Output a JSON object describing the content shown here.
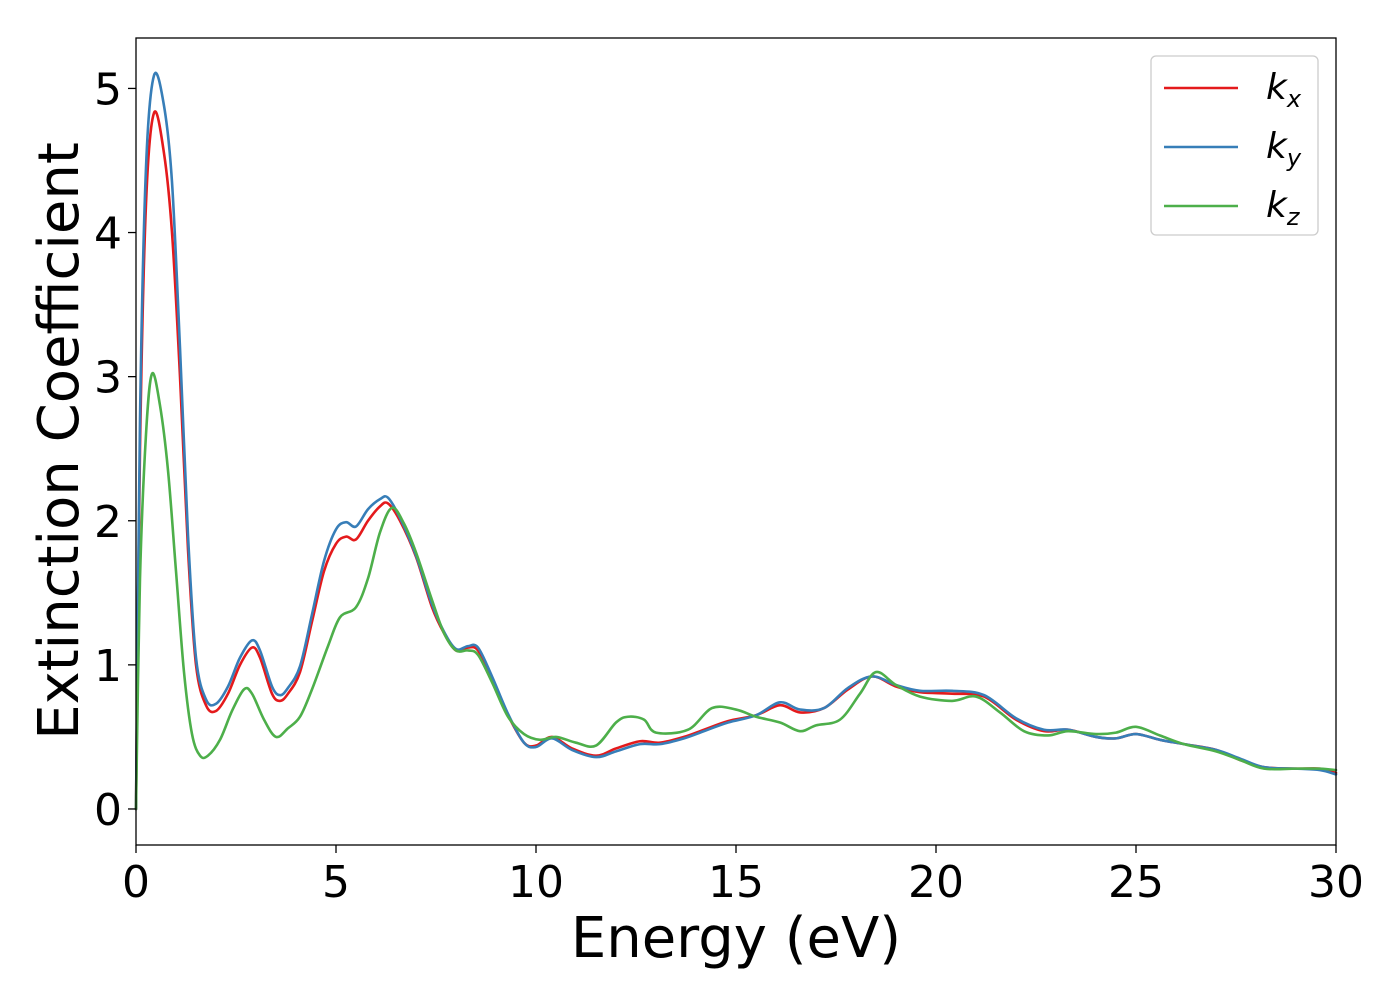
{
  "chart_data": {
    "type": "line",
    "title": "",
    "xlabel": "Energy (eV)",
    "ylabel": "Extinction Coefficient",
    "xlim": [
      0,
      30
    ],
    "ylim": [
      -0.25,
      5.35
    ],
    "xticks": [
      0,
      5,
      10,
      15,
      20,
      25,
      30
    ],
    "xtick_labels": [
      "0",
      "5",
      "10",
      "15",
      "20",
      "25",
      "30"
    ],
    "yticks": [
      0,
      1,
      2,
      3,
      4,
      5
    ],
    "ytick_labels": [
      "0",
      "1",
      "2",
      "3",
      "4",
      "5"
    ],
    "grid": false,
    "legend_position": "top-right",
    "series": [
      {
        "name": "k",
        "subscript": "x",
        "color": "#e41a1c",
        "points": [
          [
            0,
            0
          ],
          [
            0.1,
            2.5
          ],
          [
            0.25,
            4.2
          ],
          [
            0.45,
            4.83
          ],
          [
            0.7,
            4.55
          ],
          [
            0.9,
            4.0
          ],
          [
            1.1,
            3.0
          ],
          [
            1.3,
            1.8
          ],
          [
            1.5,
            1.0
          ],
          [
            1.75,
            0.72
          ],
          [
            2.0,
            0.68
          ],
          [
            2.3,
            0.8
          ],
          [
            2.6,
            1.0
          ],
          [
            2.9,
            1.12
          ],
          [
            3.1,
            1.05
          ],
          [
            3.4,
            0.8
          ],
          [
            3.6,
            0.75
          ],
          [
            3.8,
            0.8
          ],
          [
            4.1,
            0.95
          ],
          [
            4.4,
            1.3
          ],
          [
            4.7,
            1.65
          ],
          [
            5.0,
            1.84
          ],
          [
            5.25,
            1.89
          ],
          [
            5.5,
            1.87
          ],
          [
            5.8,
            2.0
          ],
          [
            6.1,
            2.1
          ],
          [
            6.3,
            2.12
          ],
          [
            6.6,
            2.0
          ],
          [
            7.0,
            1.75
          ],
          [
            7.4,
            1.4
          ],
          [
            7.7,
            1.22
          ],
          [
            8.0,
            1.1
          ],
          [
            8.3,
            1.12
          ],
          [
            8.55,
            1.1
          ],
          [
            8.9,
            0.9
          ],
          [
            9.3,
            0.65
          ],
          [
            9.7,
            0.46
          ],
          [
            10.0,
            0.44
          ],
          [
            10.4,
            0.5
          ],
          [
            10.9,
            0.42
          ],
          [
            11.5,
            0.37
          ],
          [
            12.0,
            0.42
          ],
          [
            12.6,
            0.47
          ],
          [
            13.1,
            0.46
          ],
          [
            13.7,
            0.5
          ],
          [
            14.2,
            0.55
          ],
          [
            14.8,
            0.61
          ],
          [
            15.5,
            0.65
          ],
          [
            16.1,
            0.72
          ],
          [
            16.6,
            0.67
          ],
          [
            17.2,
            0.7
          ],
          [
            17.8,
            0.83
          ],
          [
            18.4,
            0.92
          ],
          [
            19.0,
            0.85
          ],
          [
            19.6,
            0.81
          ],
          [
            20.4,
            0.8
          ],
          [
            21.2,
            0.78
          ],
          [
            22.0,
            0.62
          ],
          [
            22.7,
            0.54
          ],
          [
            23.3,
            0.55
          ],
          [
            24.0,
            0.5
          ],
          [
            24.5,
            0.49
          ],
          [
            25.0,
            0.52
          ],
          [
            25.6,
            0.48
          ],
          [
            26.2,
            0.45
          ],
          [
            27.0,
            0.41
          ],
          [
            27.6,
            0.34
          ],
          [
            28.2,
            0.29
          ],
          [
            29.0,
            0.28
          ],
          [
            29.6,
            0.28
          ],
          [
            30.0,
            0.25
          ]
        ]
      },
      {
        "name": "k",
        "subscript": "y",
        "color": "#377eb8",
        "points": [
          [
            0,
            0
          ],
          [
            0.1,
            2.7
          ],
          [
            0.25,
            4.45
          ],
          [
            0.45,
            5.09
          ],
          [
            0.7,
            4.88
          ],
          [
            0.9,
            4.35
          ],
          [
            1.1,
            3.2
          ],
          [
            1.3,
            1.9
          ],
          [
            1.5,
            1.05
          ],
          [
            1.75,
            0.76
          ],
          [
            2.0,
            0.73
          ],
          [
            2.3,
            0.85
          ],
          [
            2.6,
            1.05
          ],
          [
            2.9,
            1.17
          ],
          [
            3.1,
            1.1
          ],
          [
            3.4,
            0.85
          ],
          [
            3.6,
            0.79
          ],
          [
            3.8,
            0.84
          ],
          [
            4.1,
            0.99
          ],
          [
            4.4,
            1.35
          ],
          [
            4.7,
            1.72
          ],
          [
            5.0,
            1.94
          ],
          [
            5.25,
            1.99
          ],
          [
            5.5,
            1.96
          ],
          [
            5.8,
            2.08
          ],
          [
            6.1,
            2.15
          ],
          [
            6.3,
            2.16
          ],
          [
            6.6,
            2.02
          ],
          [
            7.0,
            1.76
          ],
          [
            7.4,
            1.42
          ],
          [
            7.7,
            1.23
          ],
          [
            8.0,
            1.11
          ],
          [
            8.3,
            1.13
          ],
          [
            8.55,
            1.12
          ],
          [
            8.9,
            0.92
          ],
          [
            9.3,
            0.66
          ],
          [
            9.7,
            0.46
          ],
          [
            10.0,
            0.43
          ],
          [
            10.4,
            0.49
          ],
          [
            10.9,
            0.41
          ],
          [
            11.5,
            0.36
          ],
          [
            12.0,
            0.4
          ],
          [
            12.6,
            0.45
          ],
          [
            13.1,
            0.45
          ],
          [
            13.7,
            0.49
          ],
          [
            14.2,
            0.54
          ],
          [
            14.8,
            0.6
          ],
          [
            15.5,
            0.65
          ],
          [
            16.1,
            0.74
          ],
          [
            16.6,
            0.69
          ],
          [
            17.2,
            0.7
          ],
          [
            17.8,
            0.84
          ],
          [
            18.4,
            0.92
          ],
          [
            19.0,
            0.86
          ],
          [
            19.6,
            0.82
          ],
          [
            20.4,
            0.82
          ],
          [
            21.2,
            0.79
          ],
          [
            22.0,
            0.63
          ],
          [
            22.7,
            0.55
          ],
          [
            23.3,
            0.55
          ],
          [
            24.0,
            0.5
          ],
          [
            24.5,
            0.49
          ],
          [
            25.0,
            0.52
          ],
          [
            25.6,
            0.48
          ],
          [
            26.2,
            0.45
          ],
          [
            27.0,
            0.41
          ],
          [
            27.6,
            0.35
          ],
          [
            28.2,
            0.29
          ],
          [
            29.0,
            0.28
          ],
          [
            29.6,
            0.27
          ],
          [
            30.0,
            0.24
          ]
        ]
      },
      {
        "name": "k",
        "subscript": "z",
        "color": "#4daf4a",
        "points": [
          [
            0,
            0
          ],
          [
            0.1,
            1.6
          ],
          [
            0.25,
            2.6
          ],
          [
            0.4,
            3.02
          ],
          [
            0.6,
            2.8
          ],
          [
            0.8,
            2.35
          ],
          [
            1.0,
            1.65
          ],
          [
            1.2,
            0.95
          ],
          [
            1.4,
            0.52
          ],
          [
            1.6,
            0.37
          ],
          [
            1.8,
            0.37
          ],
          [
            2.1,
            0.48
          ],
          [
            2.4,
            0.68
          ],
          [
            2.7,
            0.83
          ],
          [
            2.9,
            0.8
          ],
          [
            3.2,
            0.62
          ],
          [
            3.5,
            0.5
          ],
          [
            3.8,
            0.56
          ],
          [
            4.1,
            0.64
          ],
          [
            4.4,
            0.83
          ],
          [
            4.8,
            1.13
          ],
          [
            5.1,
            1.33
          ],
          [
            5.5,
            1.4
          ],
          [
            5.8,
            1.6
          ],
          [
            6.1,
            1.92
          ],
          [
            6.4,
            2.09
          ],
          [
            6.7,
            1.98
          ],
          [
            7.0,
            1.78
          ],
          [
            7.4,
            1.45
          ],
          [
            7.7,
            1.22
          ],
          [
            8.0,
            1.1
          ],
          [
            8.3,
            1.1
          ],
          [
            8.55,
            1.07
          ],
          [
            8.9,
            0.88
          ],
          [
            9.3,
            0.64
          ],
          [
            9.7,
            0.52
          ],
          [
            10.1,
            0.48
          ],
          [
            10.5,
            0.5
          ],
          [
            11.0,
            0.46
          ],
          [
            11.5,
            0.44
          ],
          [
            12.0,
            0.6
          ],
          [
            12.3,
            0.64
          ],
          [
            12.7,
            0.62
          ],
          [
            13.0,
            0.53
          ],
          [
            13.8,
            0.55
          ],
          [
            14.4,
            0.7
          ],
          [
            15.0,
            0.69
          ],
          [
            15.5,
            0.64
          ],
          [
            16.1,
            0.6
          ],
          [
            16.6,
            0.54
          ],
          [
            17.0,
            0.58
          ],
          [
            17.6,
            0.62
          ],
          [
            18.1,
            0.8
          ],
          [
            18.5,
            0.95
          ],
          [
            19.0,
            0.86
          ],
          [
            19.6,
            0.78
          ],
          [
            20.4,
            0.75
          ],
          [
            21.0,
            0.78
          ],
          [
            21.6,
            0.67
          ],
          [
            22.2,
            0.54
          ],
          [
            22.8,
            0.51
          ],
          [
            23.3,
            0.54
          ],
          [
            24.0,
            0.52
          ],
          [
            24.5,
            0.53
          ],
          [
            25.0,
            0.57
          ],
          [
            25.6,
            0.51
          ],
          [
            26.2,
            0.45
          ],
          [
            27.0,
            0.4
          ],
          [
            27.6,
            0.34
          ],
          [
            28.2,
            0.28
          ],
          [
            29.0,
            0.28
          ],
          [
            29.6,
            0.28
          ],
          [
            30.0,
            0.27
          ]
        ]
      }
    ]
  }
}
